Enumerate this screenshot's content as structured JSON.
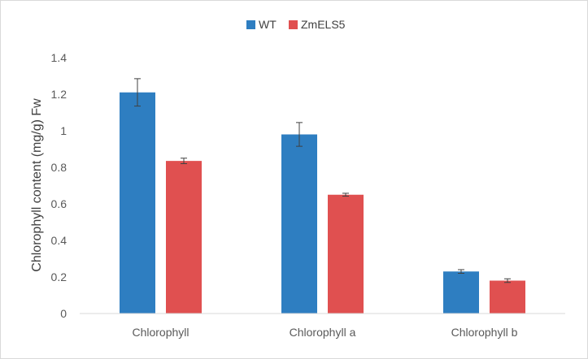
{
  "chart_data": {
    "type": "bar",
    "title": "",
    "xlabel": "",
    "ylabel": "Chlorophyll content (mg/g) Fw",
    "categories": [
      "Chlorophyll",
      "Chlorophyll a",
      "Chlorophyll b"
    ],
    "series": [
      {
        "name": "WT",
        "color": "#2e7ec1",
        "values": [
          1.21,
          0.98,
          0.23
        ],
        "errors": [
          0.075,
          0.065,
          0.01
        ]
      },
      {
        "name": "ZmELS5",
        "color": "#e05050",
        "values": [
          0.835,
          0.65,
          0.18
        ],
        "errors": [
          0.015,
          0.008,
          0.01
        ]
      }
    ],
    "ylim": [
      0,
      1.4
    ],
    "yticks": [
      "0",
      "0.2",
      "0.4",
      "0.6",
      "0.8",
      "1",
      "1.2",
      "1.4"
    ],
    "grid": false,
    "legend_position": "top"
  }
}
